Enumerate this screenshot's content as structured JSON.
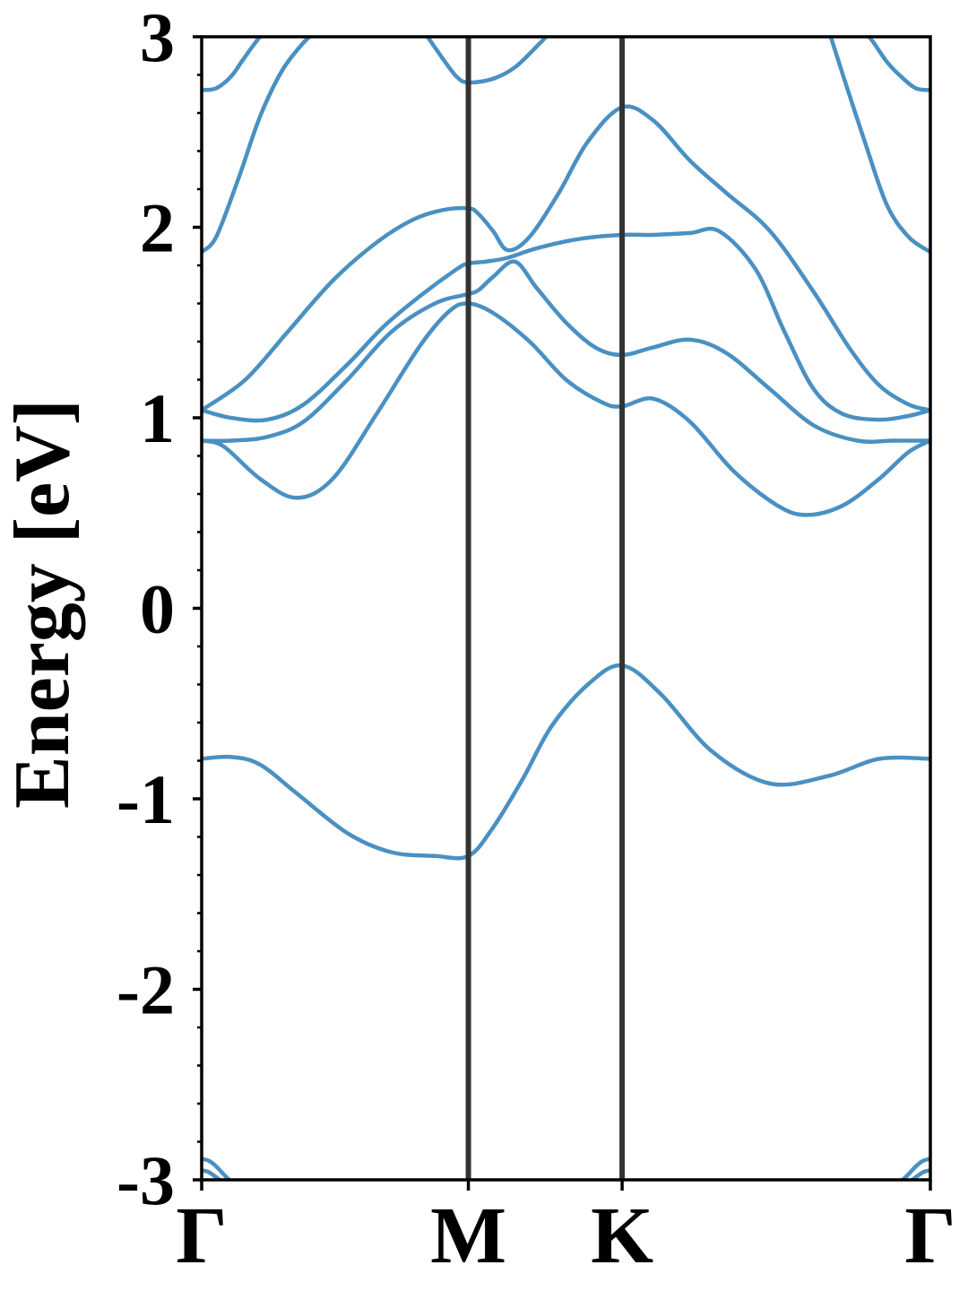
{
  "chart_data": {
    "type": "line",
    "title": "",
    "xlabel": "",
    "ylabel": "Energy [eV]",
    "ylim": [
      -3,
      3
    ],
    "y_ticks": [
      -3,
      -2,
      -1,
      0,
      1,
      2,
      3
    ],
    "y_tick_labels": [
      "-3",
      "-2",
      "-1",
      "0",
      "1",
      "2",
      "3"
    ],
    "x_range": [
      0,
      1
    ],
    "x_ticks": [
      0,
      0.366,
      0.577,
      1.0
    ],
    "x_tick_labels": [
      "Γ",
      "M",
      "K",
      "Γ"
    ],
    "high_symmetry_lines": [
      0.366,
      0.577
    ],
    "grid": false,
    "legend": "none",
    "line_color": "#4a90c2",
    "divider_color": "#333333",
    "series": [
      {
        "x": [
          0,
          0.04,
          0.08,
          0.13,
          0.2,
          0.26,
          0.32,
          0.366,
          0.4,
          0.44,
          0.48,
          0.53,
          0.577,
          0.63,
          0.7,
          0.78,
          0.86,
          0.93,
          1.0
        ],
        "y": [
          -0.79,
          -0.78,
          -0.82,
          -0.97,
          -1.18,
          -1.28,
          -1.3,
          -1.3,
          -1.15,
          -0.9,
          -0.62,
          -0.4,
          -0.3,
          -0.45,
          -0.75,
          -0.92,
          -0.88,
          -0.79,
          -0.79
        ]
      },
      {
        "x": [
          0,
          0.03,
          0.08,
          0.13,
          0.18,
          0.24,
          0.3,
          0.34,
          0.366,
          0.4,
          0.45,
          0.5,
          0.55,
          0.577,
          0.62,
          0.67,
          0.73,
          0.79,
          0.83,
          0.88,
          0.93,
          0.97,
          1.0
        ],
        "y": [
          0.88,
          0.85,
          0.68,
          0.58,
          0.68,
          1.02,
          1.38,
          1.56,
          1.6,
          1.55,
          1.4,
          1.2,
          1.08,
          1.06,
          1.1,
          0.98,
          0.72,
          0.54,
          0.49,
          0.54,
          0.68,
          0.82,
          0.88
        ]
      },
      {
        "x": [
          0,
          0.04,
          0.09,
          0.14,
          0.2,
          0.26,
          0.32,
          0.366,
          0.38,
          0.4,
          0.43,
          0.46,
          0.5,
          0.54,
          0.577,
          0.62,
          0.67,
          0.72,
          0.78,
          0.84,
          0.9,
          0.95,
          1.0
        ],
        "y": [
          0.88,
          0.88,
          0.9,
          0.98,
          1.2,
          1.45,
          1.6,
          1.65,
          1.67,
          1.74,
          1.82,
          1.68,
          1.5,
          1.37,
          1.33,
          1.37,
          1.41,
          1.34,
          1.15,
          0.96,
          0.88,
          0.88,
          0.88
        ]
      },
      {
        "x": [
          0,
          0.04,
          0.09,
          0.14,
          0.2,
          0.25,
          0.3,
          0.35,
          0.366,
          0.39,
          0.42,
          0.46,
          0.52,
          0.577,
          0.62,
          0.67,
          0.71,
          0.76,
          0.8,
          0.84,
          0.88,
          0.93,
          0.97,
          1.0
        ],
        "y": [
          1.04,
          1.0,
          0.99,
          1.07,
          1.28,
          1.48,
          1.64,
          1.78,
          1.81,
          1.82,
          1.84,
          1.89,
          1.94,
          1.96,
          1.96,
          1.97,
          1.98,
          1.78,
          1.45,
          1.15,
          1.02,
          0.99,
          1.01,
          1.04
        ]
      },
      {
        "x": [
          0,
          0.06,
          0.12,
          0.18,
          0.24,
          0.29,
          0.33,
          0.366,
          0.38,
          0.4,
          0.42,
          0.45,
          0.49,
          0.53,
          0.577,
          0.62,
          0.67,
          0.72,
          0.78,
          0.84,
          0.89,
          0.93,
          0.97,
          1.0
        ],
        "y": [
          1.04,
          1.2,
          1.46,
          1.72,
          1.92,
          2.04,
          2.09,
          2.1,
          2.07,
          1.98,
          1.88,
          1.95,
          2.18,
          2.45,
          2.63,
          2.56,
          2.35,
          2.18,
          1.98,
          1.66,
          1.36,
          1.17,
          1.07,
          1.04
        ]
      },
      {
        "x": [
          0,
          0.02,
          0.05,
          0.08,
          0.11,
          0.14,
          0.155
        ],
        "y": [
          1.87,
          1.95,
          2.25,
          2.58,
          2.82,
          2.97,
          3.02
        ]
      },
      {
        "x": [
          0,
          0.02,
          0.04,
          0.055,
          0.07,
          0.08,
          0.09,
          0.1
        ],
        "y": [
          2.72,
          2.73,
          2.79,
          2.87,
          2.95,
          3.0,
          3.04,
          3.07
        ]
      },
      {
        "x": [
          0.31,
          0.33,
          0.35,
          0.366,
          0.4,
          0.43,
          0.46,
          0.48
        ],
        "y": [
          3.0,
          2.89,
          2.79,
          2.76,
          2.78,
          2.84,
          2.95,
          3.03
        ]
      },
      {
        "x": [
          0.86,
          0.88,
          0.91,
          0.94,
          0.97,
          1.0
        ],
        "y": [
          3.04,
          2.8,
          2.45,
          2.12,
          1.95,
          1.87
        ]
      },
      {
        "x": [
          0.9,
          0.92,
          0.94,
          0.96,
          0.98,
          1.0
        ],
        "y": [
          3.07,
          2.98,
          2.87,
          2.79,
          2.73,
          2.72
        ]
      },
      {
        "x": [
          0,
          0.01,
          0.02,
          0.035,
          0.05
        ],
        "y": [
          -2.89,
          -2.9,
          -2.93,
          -2.99,
          -3.04
        ]
      },
      {
        "x": [
          0,
          0.01,
          0.025,
          0.04
        ],
        "y": [
          -2.95,
          -2.96,
          -3.0,
          -3.04
        ]
      },
      {
        "x": [
          0.95,
          0.965,
          0.98,
          0.99,
          1.0
        ],
        "y": [
          -3.04,
          -2.99,
          -2.93,
          -2.9,
          -2.89
        ]
      },
      {
        "x": [
          0.96,
          0.975,
          0.99,
          1.0
        ],
        "y": [
          -3.04,
          -3.0,
          -2.96,
          -2.95
        ]
      }
    ]
  }
}
